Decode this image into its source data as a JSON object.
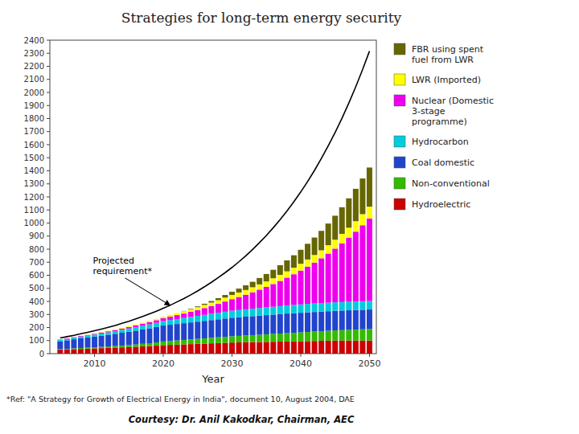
{
  "chart_data": {
    "type": "bar",
    "stacked": true,
    "title": "Strategies for long-term energy security",
    "x_label": "Year",
    "footnote": "*Ref: \"A Strategy for Growth of Electrical Energy in India\", document 10, August 2004, DAE",
    "caption": "Courtesy: Dr. Anil Kakodkar, Chairman, AEC",
    "x": [
      2005,
      2006,
      2007,
      2008,
      2009,
      2010,
      2011,
      2012,
      2013,
      2014,
      2015,
      2016,
      2017,
      2018,
      2019,
      2020,
      2021,
      2022,
      2023,
      2024,
      2025,
      2026,
      2027,
      2028,
      2029,
      2030,
      2031,
      2032,
      2033,
      2034,
      2035,
      2036,
      2037,
      2038,
      2039,
      2040,
      2041,
      2042,
      2043,
      2044,
      2045,
      2046,
      2047,
      2048,
      2049,
      2050
    ],
    "series": [
      {
        "name": "Hydroelectric",
        "color": "#cc0000",
        "values": [
          30,
          32,
          34,
          36,
          38,
          40,
          42,
          44,
          46,
          48,
          50,
          52,
          55,
          58,
          61,
          65,
          67,
          69,
          71,
          73,
          75,
          77,
          79,
          81,
          83,
          85,
          86,
          87,
          88,
          89,
          90,
          91,
          92,
          93,
          94,
          95,
          96,
          97,
          98,
          99,
          100,
          100,
          100,
          100,
          100,
          100
        ]
      },
      {
        "name": "Non-conventional",
        "color": "#33bb00",
        "values": [
          5,
          5,
          6,
          7,
          8,
          9,
          10,
          11,
          12,
          14,
          16,
          18,
          20,
          22,
          25,
          28,
          30,
          32,
          34,
          36,
          38,
          40,
          42,
          44,
          46,
          48,
          50,
          52,
          54,
          56,
          58,
          60,
          62,
          64,
          66,
          68,
          70,
          72,
          74,
          76,
          78,
          80,
          82,
          84,
          86,
          88
        ]
      },
      {
        "name": "Coal domestic",
        "color": "#2244cc",
        "values": [
          60,
          65,
          70,
          74,
          78,
          82,
          86,
          90,
          94,
          98,
          102,
          106,
          110,
          114,
          118,
          122,
          124,
          126,
          128,
          130,
          132,
          134,
          136,
          138,
          140,
          142,
          143,
          144,
          145,
          146,
          147,
          148,
          149,
          150,
          150,
          150,
          150,
          150,
          150,
          150,
          150,
          150,
          150,
          150,
          150,
          150
        ]
      },
      {
        "name": "Hydrocarbon",
        "color": "#00ccdd",
        "values": [
          10,
          11,
          12,
          13,
          14,
          15,
          16,
          18,
          20,
          22,
          24,
          26,
          28,
          30,
          32,
          34,
          36,
          38,
          40,
          42,
          44,
          46,
          48,
          50,
          52,
          54,
          55,
          56,
          57,
          58,
          59,
          60,
          61,
          62,
          63,
          64,
          65,
          65,
          65,
          65,
          65,
          65,
          65,
          65,
          65,
          65
        ]
      },
      {
        "name": "Nuclear (Domestic\n3-stage\nprogramme)",
        "color": "#ee00ee",
        "values": [
          3,
          4,
          4,
          5,
          5,
          6,
          7,
          8,
          9,
          10,
          12,
          14,
          16,
          18,
          20,
          22,
          26,
          30,
          34,
          39,
          45,
          52,
          60,
          68,
          78,
          88,
          100,
          112,
          126,
          141,
          157,
          174,
          193,
          213,
          235,
          259,
          285,
          313,
          343,
          376,
          411,
          450,
          491,
          535,
          582,
          632
        ]
      },
      {
        "name": "LWR (Imported)",
        "color": "#ffff00",
        "values": [
          1,
          1,
          2,
          2,
          2,
          3,
          3,
          4,
          4,
          5,
          6,
          7,
          8,
          9,
          10,
          12,
          14,
          16,
          18,
          20,
          22,
          24,
          26,
          28,
          30,
          32,
          34,
          36,
          38,
          40,
          42,
          44,
          46,
          48,
          50,
          52,
          55,
          58,
          61,
          64,
          68,
          72,
          76,
          80,
          85,
          90
        ]
      },
      {
        "name": "FBR using spent\nfuel from LWR",
        "color": "#666600",
        "values": [
          0,
          0,
          0,
          0,
          0,
          0,
          0,
          0,
          0,
          0,
          0,
          0,
          0,
          0,
          0,
          0,
          0,
          0,
          2,
          4,
          6,
          9,
          12,
          16,
          20,
          25,
          30,
          36,
          42,
          49,
          57,
          65,
          74,
          84,
          95,
          107,
          120,
          134,
          149,
          166,
          184,
          204,
          225,
          248,
          273,
          300
        ]
      },
      {
        "type": "line",
        "color": "#000000",
        "values": [
          120,
          130,
          140,
          152,
          163,
          175,
          188,
          202,
          216,
          232,
          248,
          266,
          284,
          304,
          325,
          347,
          370,
          396,
          422,
          450,
          480,
          512,
          546,
          582,
          620,
          660,
          703,
          749,
          798,
          850,
          905,
          964,
          1026,
          1092,
          1163,
          1238,
          1318,
          1403,
          1494,
          1591,
          1693,
          1802,
          1919,
          2043,
          2175,
          2316
        ]
      }
    ],
    "annotations": [
      {
        "text": "Projected\nrequirement*",
        "x": 2021,
        "y": 370
      }
    ],
    "xlim": [
      2003.5,
      2051
    ],
    "xticks": [
      2010,
      2020,
      2030,
      2040,
      2050
    ],
    "ylim": [
      0,
      2400
    ],
    "yticks": [
      0,
      100,
      200,
      300,
      400,
      500,
      600,
      700,
      800,
      900,
      1000,
      1100,
      1200,
      1300,
      1400,
      1500,
      1600,
      1700,
      1800,
      1900,
      2000,
      2100,
      2200,
      2300,
      2400
    ],
    "grid": false,
    "legend": "right"
  }
}
